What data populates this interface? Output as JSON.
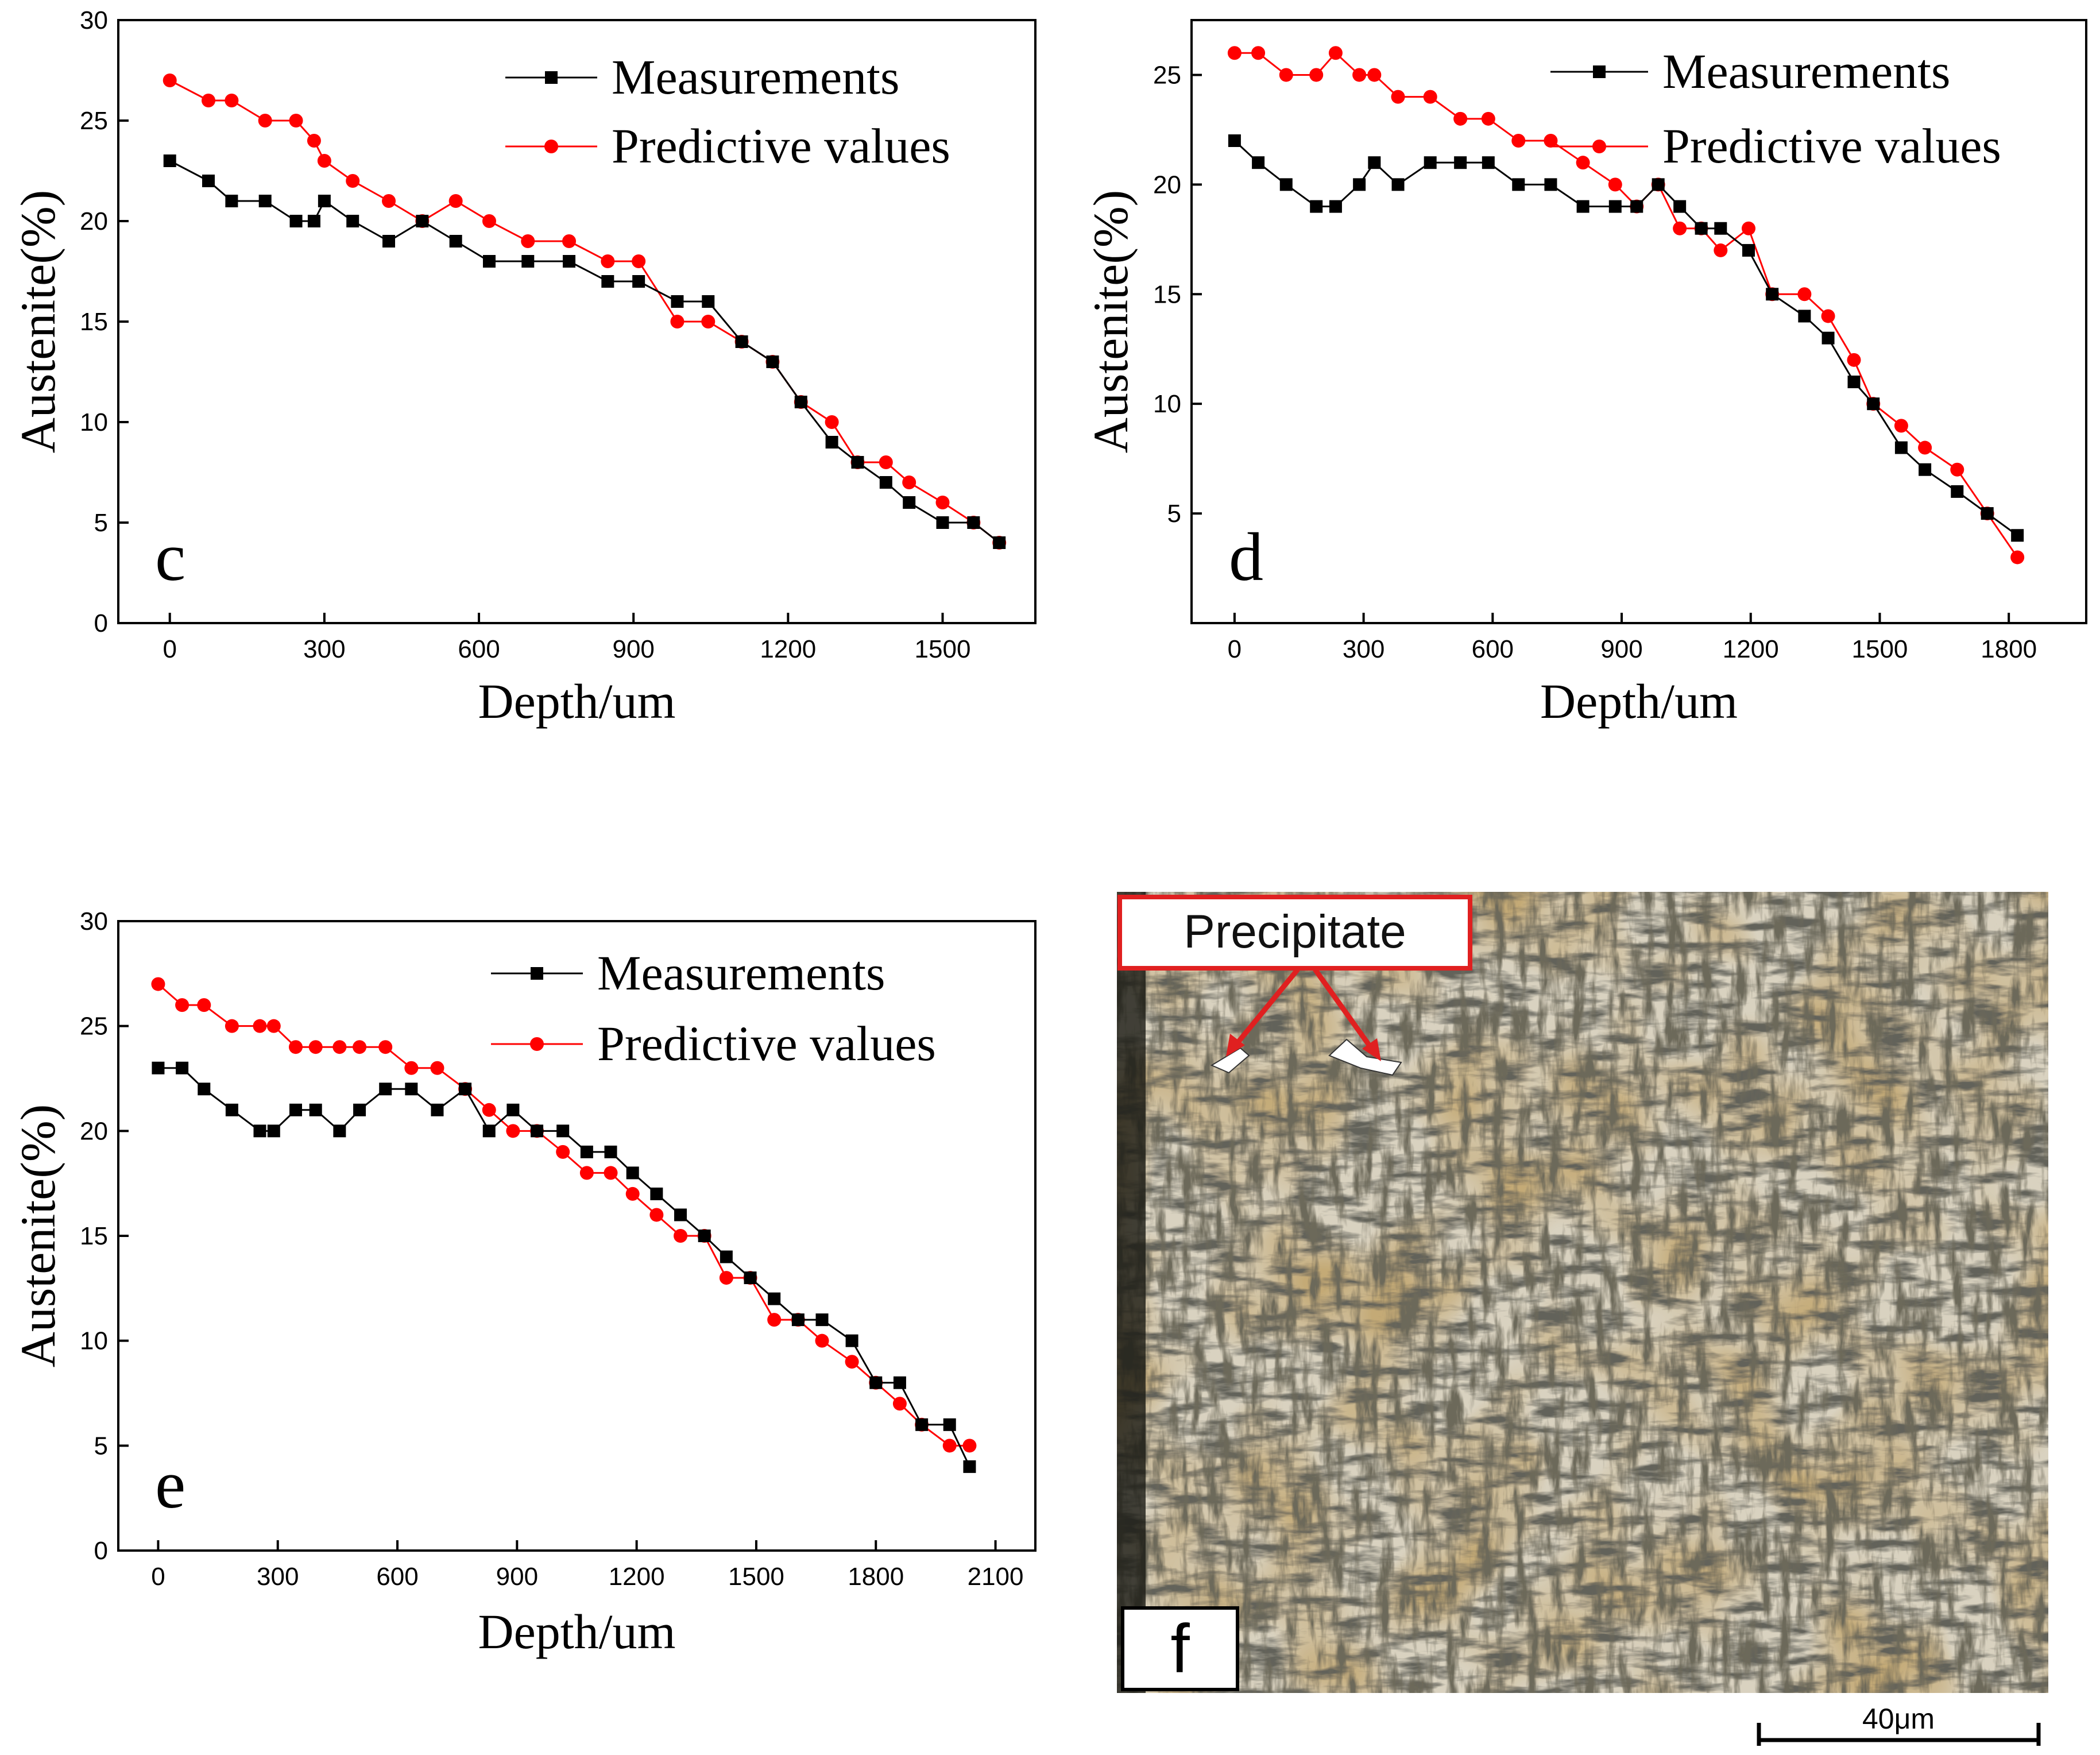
{
  "colors": {
    "measurements": "#000000",
    "predictive": "#ff0000",
    "callout_border": "#e02020",
    "arrow": "#e02020"
  },
  "chart_data": [
    {
      "panel": "c",
      "type": "line",
      "xlabel": "Depth/um",
      "ylabel": "Austenite(%)",
      "xlim": [
        -100,
        1680
      ],
      "ylim": [
        0,
        30
      ],
      "xticks": [
        0,
        300,
        600,
        900,
        1200,
        1500
      ],
      "yticks": [
        0,
        5,
        10,
        15,
        20,
        25,
        30
      ],
      "legend": "top-right",
      "series": [
        {
          "name": "Measurements",
          "marker": "square",
          "color": "#000000",
          "x": [
            0,
            75,
            120,
            185,
            245,
            280,
            300,
            355,
            425,
            490,
            555,
            620,
            695,
            775,
            850,
            910,
            985,
            1045,
            1110,
            1170,
            1225,
            1285,
            1335,
            1390,
            1435,
            1500,
            1560,
            1610
          ],
          "y": [
            23,
            22,
            21,
            21,
            20,
            20,
            21,
            20,
            19,
            20,
            19,
            18,
            18,
            18,
            17,
            17,
            16,
            16,
            14,
            13,
            11,
            9,
            8,
            7,
            6,
            5,
            5,
            4
          ]
        },
        {
          "name": "Predictive values",
          "marker": "circle",
          "color": "#ff0000",
          "x": [
            0,
            75,
            120,
            185,
            245,
            280,
            300,
            355,
            425,
            490,
            555,
            620,
            695,
            775,
            850,
            910,
            985,
            1045,
            1110,
            1170,
            1225,
            1285,
            1335,
            1390,
            1435,
            1500,
            1560,
            1610
          ],
          "y": [
            27,
            26,
            26,
            25,
            25,
            24,
            23,
            22,
            21,
            20,
            21,
            20,
            19,
            19,
            18,
            18,
            15,
            15,
            14,
            13,
            11,
            10,
            8,
            8,
            7,
            6,
            5,
            4
          ]
        }
      ]
    },
    {
      "panel": "d",
      "type": "line",
      "xlabel": "Depth/um",
      "ylabel": "Austenite(%)",
      "xlim": [
        -100,
        1980
      ],
      "ylim": [
        0,
        27.5
      ],
      "xticks": [
        0,
        300,
        600,
        900,
        1200,
        1500,
        1800
      ],
      "yticks": [
        5,
        10,
        15,
        20,
        25
      ],
      "legend": "top-right",
      "series": [
        {
          "name": "Measurements",
          "marker": "square",
          "color": "#000000",
          "x": [
            0,
            55,
            120,
            190,
            235,
            290,
            325,
            380,
            455,
            525,
            590,
            660,
            735,
            810,
            885,
            935,
            985,
            1035,
            1085,
            1130,
            1195,
            1250,
            1325,
            1380,
            1440,
            1485,
            1550,
            1605,
            1680,
            1750,
            1820
          ],
          "y": [
            22,
            21,
            20,
            19,
            19,
            20,
            21,
            20,
            21,
            21,
            21,
            20,
            20,
            19,
            19,
            19,
            20,
            19,
            18,
            18,
            17,
            15,
            14,
            13,
            11,
            10,
            8,
            7,
            6,
            5,
            4
          ]
        },
        {
          "name": "Predictive values",
          "marker": "circle",
          "color": "#ff0000",
          "x": [
            0,
            55,
            120,
            190,
            235,
            290,
            325,
            380,
            455,
            525,
            590,
            660,
            735,
            810,
            885,
            935,
            985,
            1035,
            1085,
            1130,
            1195,
            1250,
            1325,
            1380,
            1440,
            1485,
            1550,
            1605,
            1680,
            1750,
            1820
          ],
          "y": [
            26,
            26,
            25,
            25,
            26,
            25,
            25,
            24,
            24,
            23,
            23,
            22,
            22,
            21,
            20,
            19,
            20,
            18,
            18,
            17,
            18,
            15,
            15,
            14,
            12,
            10,
            9,
            8,
            7,
            5,
            3
          ]
        }
      ]
    },
    {
      "panel": "e",
      "type": "line",
      "xlabel": "Depth/um",
      "ylabel": "Austenite(%)",
      "xlim": [
        -100,
        2200
      ],
      "ylim": [
        0,
        30
      ],
      "xticks": [
        0,
        300,
        600,
        900,
        1200,
        1500,
        1800,
        2100
      ],
      "yticks": [
        0,
        5,
        10,
        15,
        20,
        25,
        30
      ],
      "legend": "top-right",
      "series": [
        {
          "name": "Measurements",
          "marker": "square",
          "color": "#000000",
          "x": [
            0,
            60,
            115,
            185,
            255,
            290,
            345,
            395,
            455,
            505,
            570,
            635,
            700,
            770,
            830,
            890,
            950,
            1015,
            1075,
            1135,
            1190,
            1250,
            1310,
            1370,
            1425,
            1485,
            1545,
            1605,
            1665,
            1740,
            1800,
            1860,
            1915,
            1985,
            2035
          ],
          "y": [
            23,
            23,
            22,
            21,
            20,
            20,
            21,
            21,
            20,
            21,
            22,
            22,
            21,
            22,
            20,
            21,
            20,
            20,
            19,
            19,
            18,
            17,
            16,
            15,
            14,
            13,
            12,
            11,
            11,
            10,
            8,
            8,
            6,
            6,
            4
          ]
        },
        {
          "name": "Predictive values",
          "marker": "circle",
          "color": "#ff0000",
          "x": [
            0,
            60,
            115,
            185,
            255,
            290,
            345,
            395,
            455,
            505,
            570,
            635,
            700,
            770,
            830,
            890,
            950,
            1015,
            1075,
            1135,
            1190,
            1250,
            1310,
            1370,
            1425,
            1485,
            1545,
            1605,
            1665,
            1740,
            1800,
            1860,
            1915,
            1985,
            2035
          ],
          "y": [
            27,
            26,
            26,
            25,
            25,
            25,
            24,
            24,
            24,
            24,
            24,
            23,
            23,
            22,
            21,
            20,
            20,
            19,
            18,
            18,
            17,
            16,
            15,
            15,
            13,
            13,
            11,
            11,
            10,
            9,
            8,
            7,
            6,
            5,
            5
          ]
        }
      ]
    }
  ],
  "micrograph": {
    "panel": "f",
    "callout": "Precipitate",
    "scale_bar": "40μm"
  }
}
